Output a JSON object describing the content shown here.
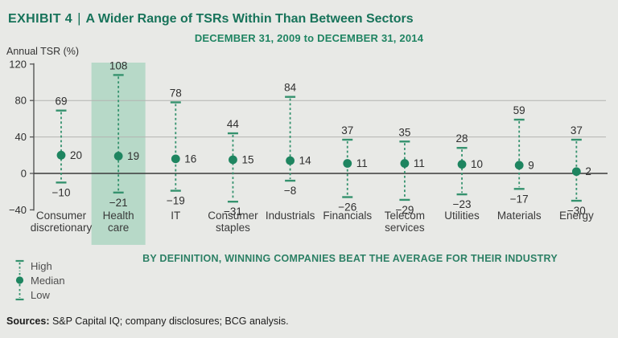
{
  "header": {
    "exhibit_label": "EXHIBIT 4",
    "separator": "|",
    "title": "A Wider Range of TSRs Within Than Between Sectors"
  },
  "subtitle": "DECEMBER 31, 2009 to DECEMBER 31, 2014",
  "note": "BY DEFINITION, WINNING COMPANIES BEAT THE AVERAGE FOR THEIR INDUSTRY",
  "legend": {
    "high": "High",
    "median": "Median",
    "low": "Low"
  },
  "sources": {
    "label": "Sources:",
    "text": " S&P Capital IQ; company disclosures; BCG analysis."
  },
  "chart_data": {
    "type": "range-dot",
    "title": "A Wider Range of TSRs Within Than Between Sectors",
    "subtitle": "DECEMBER 31, 2009 to DECEMBER 31, 2014",
    "ylabel": "Annual TSR (%)",
    "ylim": [
      -40,
      120
    ],
    "yticks": [
      120,
      80,
      40,
      0,
      -40
    ],
    "gridlines": [
      80,
      40
    ],
    "zero_line": 0,
    "grid": true,
    "legend_position": "bottom-left",
    "categories": [
      "Consumer discretionary",
      "Health care",
      "IT",
      "Consumer staples",
      "Industrials",
      "Financials",
      "Telecom services",
      "Utilities",
      "Materials",
      "Energy"
    ],
    "series": [
      {
        "name": "High",
        "values": [
          69,
          108,
          78,
          44,
          84,
          37,
          35,
          28,
          59,
          37
        ]
      },
      {
        "name": "Median",
        "values": [
          20,
          19,
          16,
          15,
          14,
          11,
          11,
          10,
          9,
          2
        ]
      },
      {
        "name": "Low",
        "values": [
          -10,
          -21,
          -19,
          -31,
          -8,
          -26,
          -29,
          -23,
          -17,
          -30
        ]
      }
    ],
    "highlight_category": "Health care",
    "colors": {
      "accent_green": "#1e8560",
      "dash_green": "#35926e",
      "highlight_band": "#b7d9c8",
      "grid_line": "#b3b4b1",
      "zero_line": "#3a3a3a",
      "axis_line": "#555555",
      "value_text": "#2f2f2f",
      "category_text": "#3a3a3a",
      "title_green": "#17735a",
      "background": "#e8e9e6"
    }
  }
}
